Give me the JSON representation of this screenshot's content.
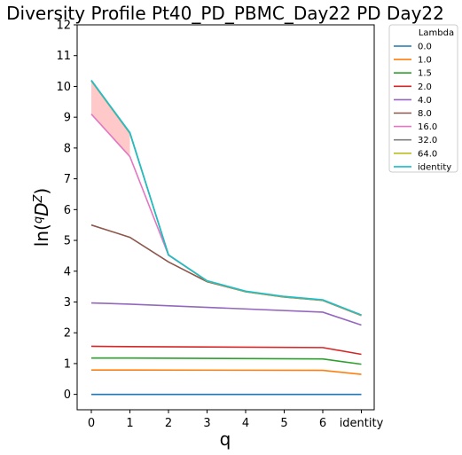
{
  "chart_data": {
    "type": "line",
    "title": "Diversity Profile Pt40_PD_PBMC_Day22 PD Day22",
    "xlabel": "q",
    "ylabel_base": "ln(",
    "ylabel_sup": "q",
    "ylabel_D": "D",
    "ylabel_supZ": "Z",
    "ylabel_close": ")",
    "categories": [
      "0",
      "1",
      "2",
      "3",
      "4",
      "5",
      "6",
      "identity"
    ],
    "ylim": [
      -0.5,
      12
    ],
    "yticks": [
      "0",
      "1",
      "2",
      "3",
      "4",
      "5",
      "6",
      "7",
      "8",
      "9",
      "10",
      "11",
      "12"
    ],
    "legend_title": "Lambda",
    "legend_position": "outside-right-top",
    "grid": false,
    "series": [
      {
        "name": "0.0",
        "color": "#1f77b4",
        "x": [
          "0",
          "1",
          "6",
          "identity"
        ],
        "values": [
          0.0,
          0.0,
          0.0,
          0.0
        ]
      },
      {
        "name": "1.0",
        "color": "#ff7f0e",
        "x": [
          "0",
          "1",
          "6",
          "identity"
        ],
        "values": [
          0.79,
          0.79,
          0.78,
          0.65
        ]
      },
      {
        "name": "1.5",
        "color": "#2ca02c",
        "x": [
          "0",
          "1",
          "6",
          "identity"
        ],
        "values": [
          1.18,
          1.18,
          1.15,
          0.98
        ]
      },
      {
        "name": "2.0",
        "color": "#d62728",
        "x": [
          "0",
          "1",
          "6",
          "identity"
        ],
        "values": [
          1.56,
          1.55,
          1.52,
          1.3
        ]
      },
      {
        "name": "4.0",
        "color": "#9467bd",
        "x": [
          "0",
          "1",
          "6",
          "identity"
        ],
        "values": [
          2.97,
          2.93,
          2.67,
          2.25
        ]
      },
      {
        "name": "8.0",
        "color": "#8c564b",
        "x": [
          "0",
          "1",
          "2",
          "3",
          "4",
          "5",
          "6",
          "identity"
        ],
        "values": [
          5.5,
          5.1,
          4.3,
          3.66,
          3.33,
          3.16,
          3.05,
          2.56
        ]
      },
      {
        "name": "16.0",
        "color": "#e377c2",
        "x": [
          "0",
          "1",
          "2",
          "3",
          "4",
          "5",
          "6",
          "identity"
        ],
        "values": [
          9.1,
          7.72,
          4.52,
          3.68,
          3.34,
          3.17,
          3.06,
          2.57
        ]
      },
      {
        "name": "32.0",
        "color": "#7f7f7f",
        "x": [
          "0",
          "1",
          "2",
          "3",
          "4",
          "5",
          "6",
          "identity"
        ],
        "values": [
          10.18,
          8.48,
          4.53,
          3.68,
          3.34,
          3.17,
          3.06,
          2.57
        ]
      },
      {
        "name": "64.0",
        "color": "#bcbd22",
        "x": [
          "0",
          "1",
          "2",
          "3",
          "4",
          "5",
          "6",
          "identity"
        ],
        "values": [
          10.19,
          8.49,
          4.53,
          3.68,
          3.34,
          3.17,
          3.06,
          2.57
        ]
      },
      {
        "name": "identity",
        "color": "#17becf",
        "x": [
          "0",
          "1",
          "2",
          "3",
          "4",
          "5",
          "6",
          "identity"
        ],
        "values": [
          10.2,
          8.5,
          4.53,
          3.69,
          3.35,
          3.18,
          3.07,
          2.58
        ]
      }
    ],
    "shaded_band": {
      "color": "#ffc9c9",
      "x": [
        "0",
        "1"
      ],
      "lower": [
        9.1,
        7.72
      ],
      "upper": [
        10.18,
        8.48
      ]
    }
  }
}
